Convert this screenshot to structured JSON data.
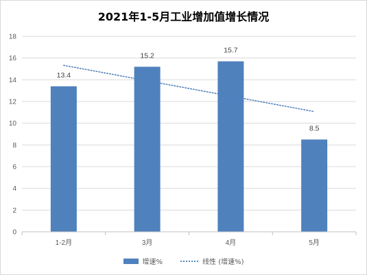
{
  "chart_data": {
    "type": "bar",
    "title": "2021年1-5月工业增加值增长情况",
    "categories": [
      "1-2月",
      "3月",
      "4月",
      "5月"
    ],
    "series": [
      {
        "name": "增速%",
        "values": [
          13.4,
          15.2,
          15.7,
          8.5
        ],
        "color": "#4f81bd"
      }
    ],
    "trendline": {
      "name": "线性 (增速%)",
      "type": "linear",
      "color": "#4f81bd",
      "style": "dotted"
    },
    "ylim": [
      0,
      18
    ],
    "yticks": [
      0,
      2,
      4,
      6,
      8,
      10,
      12,
      14,
      16,
      18
    ],
    "grid": true,
    "legend": "bottom"
  }
}
